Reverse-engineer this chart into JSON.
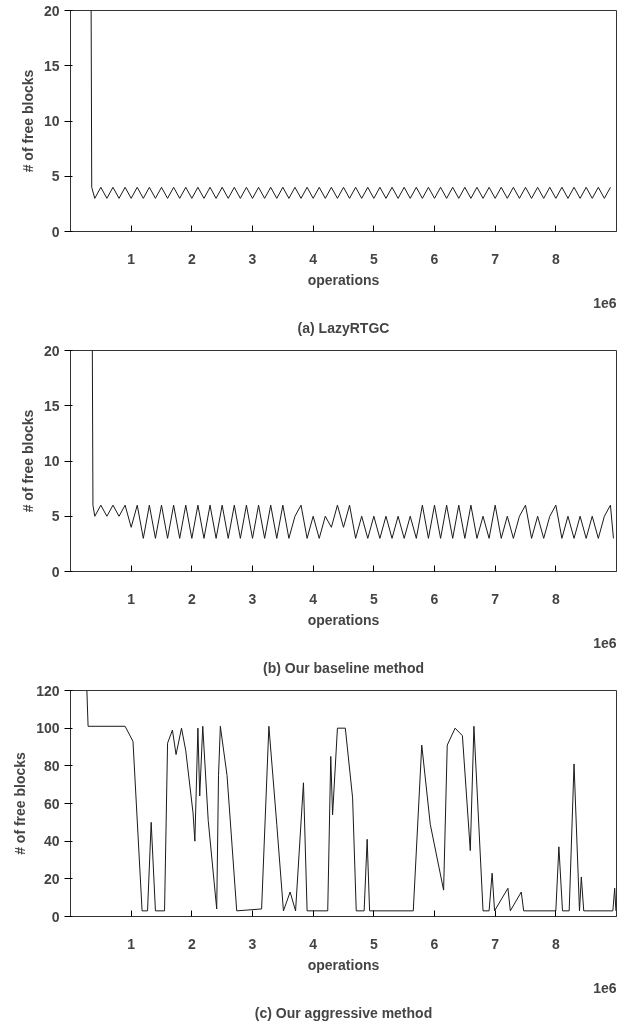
{
  "chart_data": [
    {
      "type": "line",
      "title": "(a) LazyRTGC",
      "xlabel": "operations",
      "ylabel": "# of free blocks",
      "annotations": [
        "1e6"
      ],
      "grid": false,
      "xlim": [
        0,
        9
      ],
      "ylim": [
        0,
        20
      ],
      "xticks": [
        1,
        2,
        3,
        4,
        5,
        6,
        7,
        8
      ],
      "yticks": [
        0,
        5,
        10,
        15,
        20
      ],
      "series": [
        {
          "color": "#1a1a1a",
          "x": [
            0.34,
            0.35,
            0.4,
            0.5,
            0.6,
            0.7,
            0.8,
            0.9,
            1.0,
            1.1,
            1.2,
            1.3,
            1.4,
            1.5,
            1.6,
            1.7,
            1.8,
            1.9,
            2.0,
            2.1,
            2.2,
            2.3,
            2.4,
            2.5,
            2.6,
            2.7,
            2.8,
            2.9,
            3.0,
            3.1,
            3.2,
            3.3,
            3.4,
            3.5,
            3.6,
            3.7,
            3.8,
            3.9,
            4.0,
            4.1,
            4.2,
            4.3,
            4.4,
            4.5,
            4.6,
            4.7,
            4.8,
            4.9,
            5.0,
            5.1,
            5.2,
            5.3,
            5.4,
            5.5,
            5.6,
            5.7,
            5.8,
            5.9,
            6.0,
            6.1,
            6.2,
            6.3,
            6.4,
            6.5,
            6.6,
            6.7,
            6.8,
            6.9,
            7.0,
            7.1,
            7.2,
            7.3,
            7.4,
            7.5,
            7.6,
            7.7,
            7.8,
            7.9,
            8.0,
            8.1,
            8.2,
            8.3,
            8.4,
            8.5,
            8.6,
            8.7,
            8.8,
            8.9
          ],
          "values": [
            20,
            4,
            3,
            4,
            3,
            4,
            3,
            4,
            3,
            4,
            3,
            4,
            3,
            4,
            3,
            4,
            3,
            4,
            3,
            4,
            3,
            4,
            3,
            4,
            3,
            4,
            3,
            4,
            3,
            4,
            3,
            4,
            3,
            4,
            3,
            4,
            3,
            4,
            3,
            4,
            3,
            4,
            3,
            4,
            3,
            4,
            3,
            4,
            3,
            4,
            3,
            4,
            3,
            4,
            3,
            4,
            3,
            4,
            3,
            4,
            3,
            4,
            3,
            4,
            3,
            4,
            3,
            4,
            3,
            4,
            3,
            4,
            3,
            4,
            3,
            4,
            3,
            4,
            3,
            4,
            3,
            4,
            3,
            4,
            3,
            4,
            3,
            4
          ]
        }
      ]
    },
    {
      "type": "line",
      "title": "(b) Our baseline method",
      "xlabel": "operations",
      "ylabel": "# of free blocks",
      "annotations": [
        "1e6"
      ],
      "grid": false,
      "xlim": [
        0,
        9
      ],
      "ylim": [
        0,
        20
      ],
      "xticks": [
        1,
        2,
        3,
        4,
        5,
        6,
        7,
        8
      ],
      "yticks": [
        0,
        5,
        10,
        15,
        20
      ],
      "series": [
        {
          "color": "#1a1a1a",
          "x": [
            0.36,
            0.37,
            0.4,
            0.5,
            0.6,
            0.7,
            0.8,
            0.9,
            1.0,
            1.1,
            1.2,
            1.3,
            1.4,
            1.5,
            1.6,
            1.7,
            1.8,
            1.9,
            2.0,
            2.1,
            2.2,
            2.3,
            2.4,
            2.5,
            2.6,
            2.7,
            2.8,
            2.9,
            3.0,
            3.1,
            3.2,
            3.3,
            3.4,
            3.5,
            3.6,
            3.7,
            3.8,
            3.9,
            4.0,
            4.1,
            4.2,
            4.3,
            4.4,
            4.5,
            4.6,
            4.7,
            4.8,
            4.9,
            5.0,
            5.1,
            5.2,
            5.3,
            5.4,
            5.5,
            5.6,
            5.7,
            5.8,
            5.9,
            6.0,
            6.1,
            6.2,
            6.3,
            6.4,
            6.5,
            6.6,
            6.7,
            6.8,
            6.9,
            7.0,
            7.1,
            7.2,
            7.3,
            7.4,
            7.5,
            7.6,
            7.7,
            7.8,
            7.9,
            8.0,
            8.1,
            8.2,
            8.3,
            8.4,
            8.5,
            8.6,
            8.7,
            8.8,
            8.9,
            8.95
          ],
          "values": [
            20,
            6,
            5,
            6,
            5,
            6,
            5,
            6,
            4,
            6,
            3,
            6,
            3,
            6,
            3,
            6,
            3,
            6,
            3,
            6,
            3,
            6,
            3,
            6,
            3,
            6,
            3,
            6,
            3,
            6,
            3,
            6,
            3,
            6,
            3,
            5,
            6,
            3,
            5,
            3,
            5,
            4,
            6,
            4,
            6,
            3,
            5,
            3,
            5,
            3,
            5,
            3,
            5,
            3,
            5,
            3,
            6,
            3,
            6,
            3,
            6,
            3,
            6,
            3,
            6,
            3,
            5,
            3,
            6,
            3,
            5,
            3,
            5,
            6,
            3,
            5,
            3,
            5,
            6,
            3,
            5,
            3,
            5,
            3,
            5,
            3,
            5,
            6,
            3
          ]
        }
      ]
    },
    {
      "type": "line",
      "title": "(c) Our aggressive method",
      "xlabel": "operations",
      "ylabel": "# of free blocks",
      "annotations": [
        "1e6"
      ],
      "grid": false,
      "xlim": [
        0,
        9
      ],
      "ylim": [
        0,
        120
      ],
      "xticks": [
        1,
        2,
        3,
        4,
        5,
        6,
        7,
        8
      ],
      "yticks": [
        0,
        20,
        40,
        60,
        80,
        100,
        120
      ],
      "series": [
        {
          "color": "#1a1a1a",
          "x": [
            0.27,
            0.29,
            0.9,
            1.03,
            1.18,
            1.27,
            1.33,
            1.4,
            1.55,
            1.6,
            1.68,
            1.74,
            1.83,
            1.9,
            2.02,
            2.05,
            2.1,
            2.13,
            2.18,
            2.27,
            2.41,
            2.44,
            2.47,
            2.58,
            2.74,
            3.15,
            3.27,
            3.4,
            3.51,
            3.62,
            3.71,
            3.84,
            3.9,
            4.24,
            4.29,
            4.32,
            4.4,
            4.53,
            4.65,
            4.71,
            4.84,
            4.89,
            4.93,
            5.65,
            5.79,
            5.93,
            6.15,
            6.21,
            6.34,
            6.46,
            6.59,
            6.65,
            6.8,
            6.9,
            6.95,
            6.99,
            7.21,
            7.25,
            7.43,
            7.47,
            8.0,
            8.05,
            8.11,
            8.22,
            8.3,
            8.39,
            8.42,
            8.46,
            8.94,
            8.97,
            8.99
          ],
          "values": [
            120,
            101,
            101,
            93,
            3,
            3,
            50,
            3,
            3,
            92,
            99,
            86,
            100,
            88,
            55,
            40,
            100,
            64,
            101,
            51,
            4,
            75,
            101,
            75,
            3,
            4,
            101,
            49,
            3,
            13,
            3,
            71,
            3,
            3,
            85,
            54,
            100,
            100,
            63,
            3,
            3,
            41,
            3,
            3,
            91,
            49,
            14,
            91,
            100,
            96,
            35,
            101,
            3,
            3,
            23,
            3,
            15,
            3,
            13,
            3,
            3,
            37,
            3,
            3,
            81,
            3,
            21,
            3,
            3,
            15,
            3
          ]
        }
      ]
    }
  ]
}
